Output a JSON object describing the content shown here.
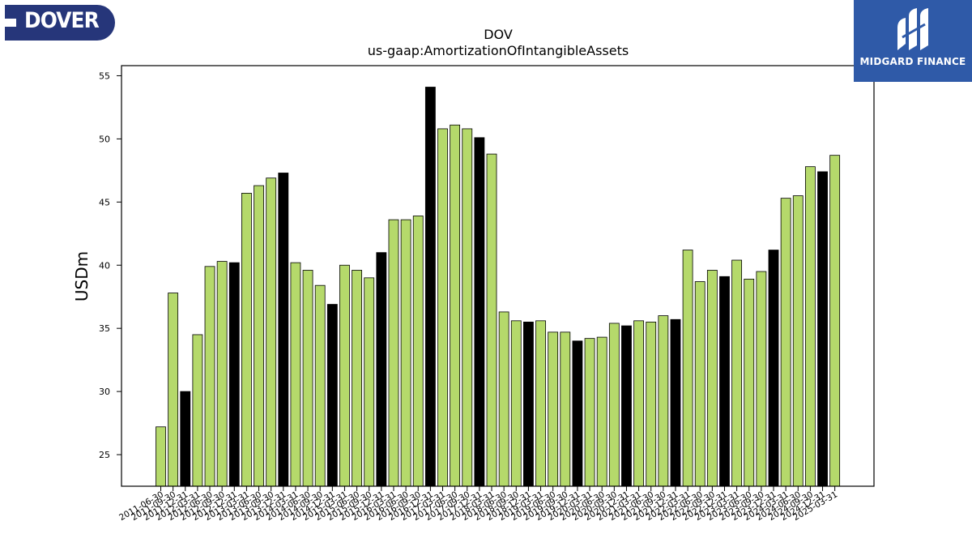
{
  "logos": {
    "left_text": "DOVER",
    "right_text": "MIDGARD FINANCE",
    "left_color": "#26367a",
    "right_color": "#2f5aa8"
  },
  "chart_data": {
    "type": "bar",
    "title": "DOV",
    "subtitle": "us-gaap:AmortizationOfIntangibleAssets",
    "xlabel": "",
    "ylabel": "USDm",
    "ylim": [
      22.5,
      55.8
    ],
    "yticks": [
      25,
      30,
      35,
      40,
      45,
      50,
      55
    ],
    "grid": false,
    "colors": {
      "quarter": "#b5d96b",
      "fiscal_year_end": "#000000",
      "edge": "#000000"
    },
    "categories": [
      "2011-06-30",
      "2011-09-30",
      "2011-12-31",
      "2012-03-31",
      "2012-06-30",
      "2012-09-30",
      "2012-12-31",
      "2013-03-31",
      "2013-06-30",
      "2013-09-30",
      "2013-12-31",
      "2014-03-31",
      "2014-06-30",
      "2014-09-30",
      "2014-12-31",
      "2015-03-31",
      "2015-06-30",
      "2015-09-30",
      "2015-12-31",
      "2016-03-31",
      "2016-06-30",
      "2016-09-30",
      "2016-12-31",
      "2017-03-31",
      "2017-06-30",
      "2017-09-30",
      "2017-12-31",
      "2018-03-31",
      "2018-06-30",
      "2018-09-30",
      "2018-12-31",
      "2019-03-31",
      "2019-06-30",
      "2019-09-30",
      "2019-12-31",
      "2020-03-31",
      "2020-06-30",
      "2020-09-30",
      "2020-12-31",
      "2021-03-31",
      "2021-06-30",
      "2021-09-30",
      "2021-12-31",
      "2022-03-31",
      "2022-06-30",
      "2022-09-30",
      "2022-12-31",
      "2023-03-31",
      "2023-06-30",
      "2023-09-30",
      "2023-12-31",
      "2024-03-31",
      "2024-06-30",
      "2024-09-30",
      "2024-12-31",
      "2025-03-31"
    ],
    "values": [
      27.2,
      37.8,
      30.0,
      34.5,
      39.9,
      40.3,
      40.2,
      45.7,
      46.3,
      46.9,
      47.3,
      40.2,
      39.6,
      38.4,
      36.9,
      40.0,
      39.6,
      39.0,
      41.0,
      43.6,
      43.6,
      43.9,
      54.1,
      50.8,
      51.1,
      50.8,
      50.1,
      48.8,
      36.3,
      35.6,
      35.5,
      35.6,
      34.7,
      34.7,
      34.0,
      34.2,
      34.3,
      35.4,
      35.2,
      35.6,
      35.5,
      36.0,
      35.7,
      41.2,
      38.7,
      39.6,
      39.1,
      40.4,
      38.9,
      39.5,
      41.2,
      45.3,
      45.5,
      47.8,
      47.4,
      48.7
    ],
    "highlight_indices": [
      2,
      6,
      10,
      14,
      18,
      22,
      26,
      30,
      34,
      38,
      42,
      46,
      50,
      54
    ]
  }
}
